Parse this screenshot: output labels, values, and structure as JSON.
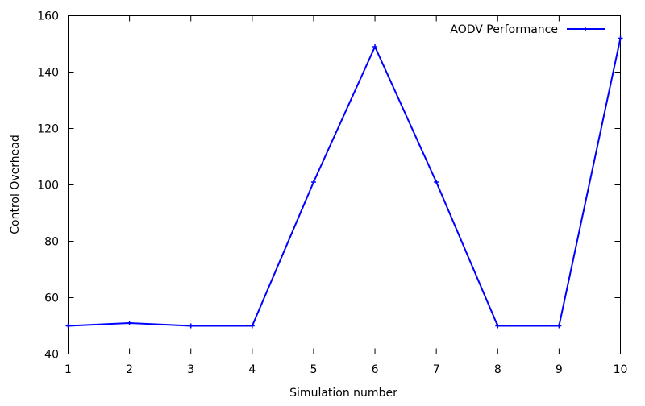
{
  "chart_data": {
    "type": "line",
    "title": "",
    "xlabel": "Simulation number",
    "ylabel": "Control Overhead",
    "xlim": [
      1,
      10
    ],
    "ylim": [
      40,
      160
    ],
    "x_ticks": [
      1,
      2,
      3,
      4,
      5,
      6,
      7,
      8,
      9,
      10
    ],
    "y_ticks": [
      40,
      60,
      80,
      100,
      120,
      140,
      160
    ],
    "grid": false,
    "legend_position": "top-right",
    "series": [
      {
        "name": "AODV Performance",
        "color": "#0000ff",
        "marker": "plus",
        "x": [
          1,
          2,
          3,
          4,
          5,
          6,
          7,
          8,
          9,
          10
        ],
        "values": [
          50,
          51,
          50,
          50,
          101,
          149,
          101,
          50,
          50,
          152
        ]
      }
    ]
  }
}
